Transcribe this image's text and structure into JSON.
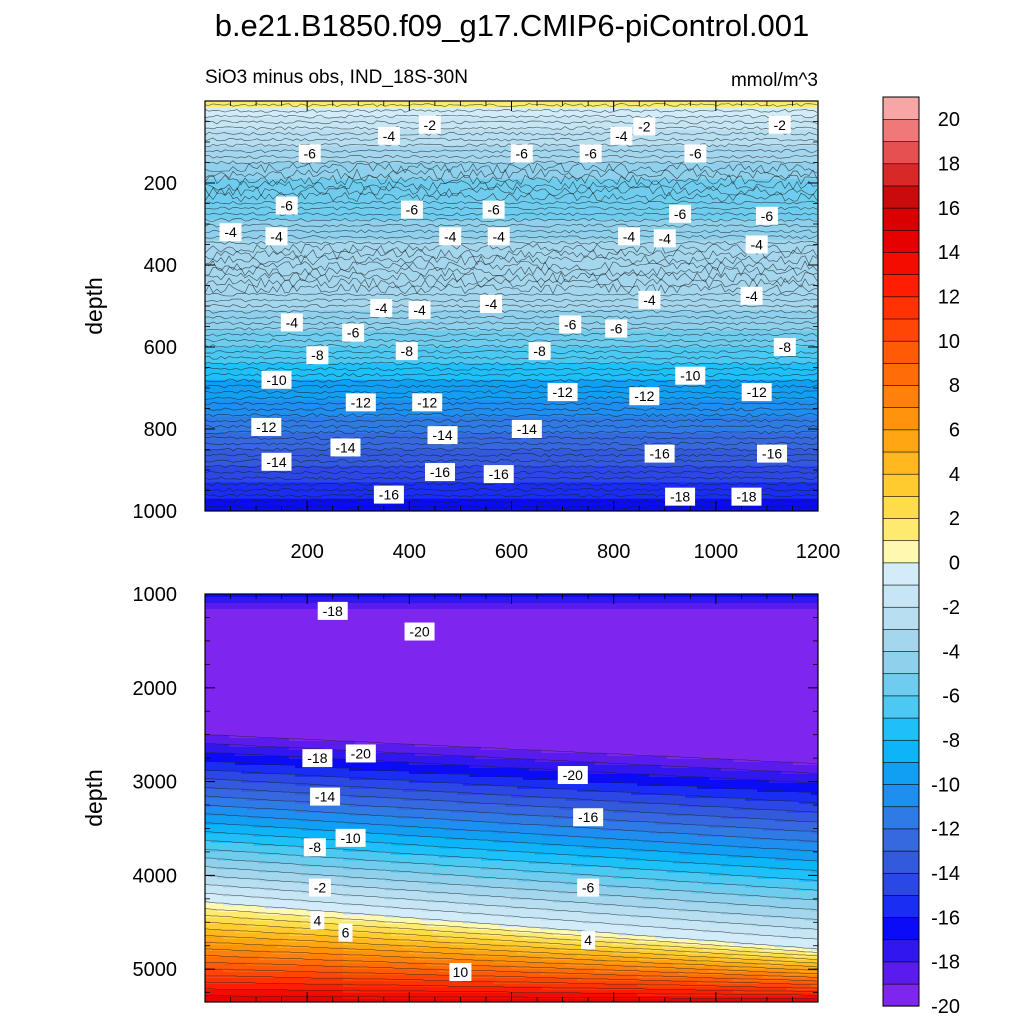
{
  "chart_data": {
    "type": "heatmap",
    "title": "b.e21.B1850.f09_g17.CMIP6-piControl.001",
    "subtitle": "SiO3 minus obs, IND_18S-30N",
    "units": "mmol/m^3",
    "ylabel": "depth",
    "panels": [
      {
        "name": "upper",
        "ylabel": "depth",
        "xlim": [
          0,
          1200
        ],
        "ylim": [
          1000,
          0
        ],
        "x_ticks": [
          200,
          400,
          600,
          800,
          1000,
          1200
        ],
        "y_ticks": [
          200,
          400,
          600,
          800,
          1000
        ],
        "bands": [
          {
            "depth": 0,
            "value": 1
          },
          {
            "depth": 15,
            "value": -1
          },
          {
            "depth": 40,
            "value": -2
          },
          {
            "depth": 70,
            "value": -3
          },
          {
            "depth": 110,
            "value": -4
          },
          {
            "depth": 150,
            "value": -5
          },
          {
            "depth": 190,
            "value": -6
          },
          {
            "depth": 240,
            "value": -5.5
          },
          {
            "depth": 290,
            "value": -4.5
          },
          {
            "depth": 340,
            "value": -3.5
          },
          {
            "depth": 460,
            "value": -4
          },
          {
            "depth": 510,
            "value": -5
          },
          {
            "depth": 560,
            "value": -6
          },
          {
            "depth": 600,
            "value": -7
          },
          {
            "depth": 640,
            "value": -8
          },
          {
            "depth": 680,
            "value": -10
          },
          {
            "depth": 730,
            "value": -11
          },
          {
            "depth": 770,
            "value": -12
          },
          {
            "depth": 810,
            "value": -13
          },
          {
            "depth": 850,
            "value": -14
          },
          {
            "depth": 890,
            "value": -15
          },
          {
            "depth": 930,
            "value": -16
          },
          {
            "depth": 970,
            "value": -17
          },
          {
            "depth": 1000,
            "value": -18
          }
        ],
        "contour_labels": [
          {
            "x": 440,
            "y": 58,
            "text": "-2"
          },
          {
            "x": 860,
            "y": 62,
            "text": "-2"
          },
          {
            "x": 1125,
            "y": 58,
            "text": "-2"
          },
          {
            "x": 360,
            "y": 85,
            "text": "-4"
          },
          {
            "x": 815,
            "y": 85,
            "text": "-4"
          },
          {
            "x": 205,
            "y": 128,
            "text": "-6"
          },
          {
            "x": 620,
            "y": 128,
            "text": "-6"
          },
          {
            "x": 755,
            "y": 128,
            "text": "-6"
          },
          {
            "x": 960,
            "y": 128,
            "text": "-6"
          },
          {
            "x": 160,
            "y": 255,
            "text": "-6"
          },
          {
            "x": 405,
            "y": 265,
            "text": "-6"
          },
          {
            "x": 565,
            "y": 265,
            "text": "-6"
          },
          {
            "x": 930,
            "y": 275,
            "text": "-6"
          },
          {
            "x": 1100,
            "y": 280,
            "text": "-6"
          },
          {
            "x": 50,
            "y": 320,
            "text": "-4"
          },
          {
            "x": 140,
            "y": 330,
            "text": "-4"
          },
          {
            "x": 480,
            "y": 330,
            "text": "-4"
          },
          {
            "x": 575,
            "y": 330,
            "text": "-4"
          },
          {
            "x": 830,
            "y": 330,
            "text": "-4"
          },
          {
            "x": 900,
            "y": 335,
            "text": "-4"
          },
          {
            "x": 1080,
            "y": 350,
            "text": "-4"
          },
          {
            "x": 345,
            "y": 505,
            "text": "-4"
          },
          {
            "x": 420,
            "y": 510,
            "text": "-4"
          },
          {
            "x": 560,
            "y": 495,
            "text": "-4"
          },
          {
            "x": 870,
            "y": 485,
            "text": "-4"
          },
          {
            "x": 1070,
            "y": 475,
            "text": "-4"
          },
          {
            "x": 170,
            "y": 540,
            "text": "-4"
          },
          {
            "x": 290,
            "y": 565,
            "text": "-6"
          },
          {
            "x": 715,
            "y": 545,
            "text": "-6"
          },
          {
            "x": 805,
            "y": 555,
            "text": "-6"
          },
          {
            "x": 220,
            "y": 620,
            "text": "-8"
          },
          {
            "x": 395,
            "y": 610,
            "text": "-8"
          },
          {
            "x": 655,
            "y": 610,
            "text": "-8"
          },
          {
            "x": 1135,
            "y": 600,
            "text": "-8"
          },
          {
            "x": 140,
            "y": 680,
            "text": "-10"
          },
          {
            "x": 950,
            "y": 670,
            "text": "-10"
          },
          {
            "x": 305,
            "y": 735,
            "text": "-12"
          },
          {
            "x": 435,
            "y": 735,
            "text": "-12"
          },
          {
            "x": 700,
            "y": 710,
            "text": "-12"
          },
          {
            "x": 860,
            "y": 720,
            "text": "-12"
          },
          {
            "x": 1080,
            "y": 710,
            "text": "-12"
          },
          {
            "x": 120,
            "y": 795,
            "text": "-12"
          },
          {
            "x": 275,
            "y": 845,
            "text": "-14"
          },
          {
            "x": 465,
            "y": 815,
            "text": "-14"
          },
          {
            "x": 630,
            "y": 800,
            "text": "-14"
          },
          {
            "x": 140,
            "y": 880,
            "text": "-14"
          },
          {
            "x": 460,
            "y": 905,
            "text": "-16"
          },
          {
            "x": 575,
            "y": 910,
            "text": "-16"
          },
          {
            "x": 890,
            "y": 860,
            "text": "-16"
          },
          {
            "x": 1110,
            "y": 860,
            "text": "-16"
          },
          {
            "x": 360,
            "y": 960,
            "text": "-16"
          },
          {
            "x": 930,
            "y": 965,
            "text": "-18"
          },
          {
            "x": 1060,
            "y": 965,
            "text": "-18"
          }
        ]
      },
      {
        "name": "lower",
        "ylabel": "depth",
        "xlim": [
          0,
          1200
        ],
        "ylim": [
          5350,
          1000
        ],
        "y_ticks": [
          1000,
          2000,
          3000,
          4000,
          5000
        ],
        "contour_labels": [
          {
            "x": 250,
            "y": 1180,
            "text": "-18"
          },
          {
            "x": 420,
            "y": 1400,
            "text": "-20"
          },
          {
            "x": 305,
            "y": 2700,
            "text": "-20"
          },
          {
            "x": 220,
            "y": 2750,
            "text": "-18"
          },
          {
            "x": 720,
            "y": 2930,
            "text": "-20"
          },
          {
            "x": 235,
            "y": 3160,
            "text": "-14"
          },
          {
            "x": 750,
            "y": 3380,
            "text": "-16"
          },
          {
            "x": 285,
            "y": 3600,
            "text": "-10"
          },
          {
            "x": 215,
            "y": 3700,
            "text": "-8"
          },
          {
            "x": 225,
            "y": 4130,
            "text": "-2"
          },
          {
            "x": 750,
            "y": 4130,
            "text": "-6"
          },
          {
            "x": 220,
            "y": 4480,
            "text": "4"
          },
          {
            "x": 275,
            "y": 4610,
            "text": "6"
          },
          {
            "x": 750,
            "y": 4690,
            "text": "4"
          },
          {
            "x": 500,
            "y": 5030,
            "text": "10"
          }
        ]
      }
    ],
    "colorbar": {
      "levels": [
        -20,
        -19,
        -18,
        -17,
        -16,
        -15,
        -14,
        -13,
        -12,
        -11,
        -10,
        -9,
        -8,
        -7,
        -6,
        -5,
        -4,
        -3,
        -2,
        -1,
        0,
        1,
        2,
        3,
        4,
        5,
        6,
        7,
        8,
        9,
        10,
        11,
        12,
        13,
        14,
        15,
        16,
        17,
        18,
        19,
        20,
        21
      ],
      "tick_labels": [
        "-20",
        "-18",
        "-16",
        "-14",
        "-12",
        "-10",
        "-8",
        "-6",
        "-4",
        "-2",
        "0",
        "2",
        "4",
        "6",
        "8",
        "10",
        "12",
        "14",
        "16",
        "18",
        "20"
      ],
      "tick_values": [
        -20,
        -18,
        -16,
        -14,
        -12,
        -10,
        -8,
        -6,
        -4,
        -2,
        0,
        2,
        4,
        6,
        8,
        10,
        12,
        14,
        16,
        18,
        20
      ],
      "colors_bottom_to_top": [
        "#7f26ee",
        "#5a1ced",
        "#2f17ee",
        "#0a0cf8",
        "#1a2df2",
        "#2b47e6",
        "#3359dd",
        "#3668e0",
        "#2f7be6",
        "#1e8ef1",
        "#109ff3",
        "#0db4f7",
        "#1dc0f9",
        "#4bc9f2",
        "#6ecdee",
        "#8fd0ec",
        "#a4d6ee",
        "#b7dff1",
        "#c6e5f5",
        "#d3ecf9",
        "#fff8b0",
        "#ffea70",
        "#ffdc4a",
        "#ffcb2f",
        "#ffb91e",
        "#ffa612",
        "#ff930c",
        "#ff800a",
        "#ff6c08",
        "#ff5a06",
        "#ff4604",
        "#ff3202",
        "#ff1e01",
        "#f40c00",
        "#e60000",
        "#d80000",
        "#c80b0b",
        "#d82828",
        "#e65050",
        "#f07878",
        "#f7a6a6"
      ]
    }
  }
}
